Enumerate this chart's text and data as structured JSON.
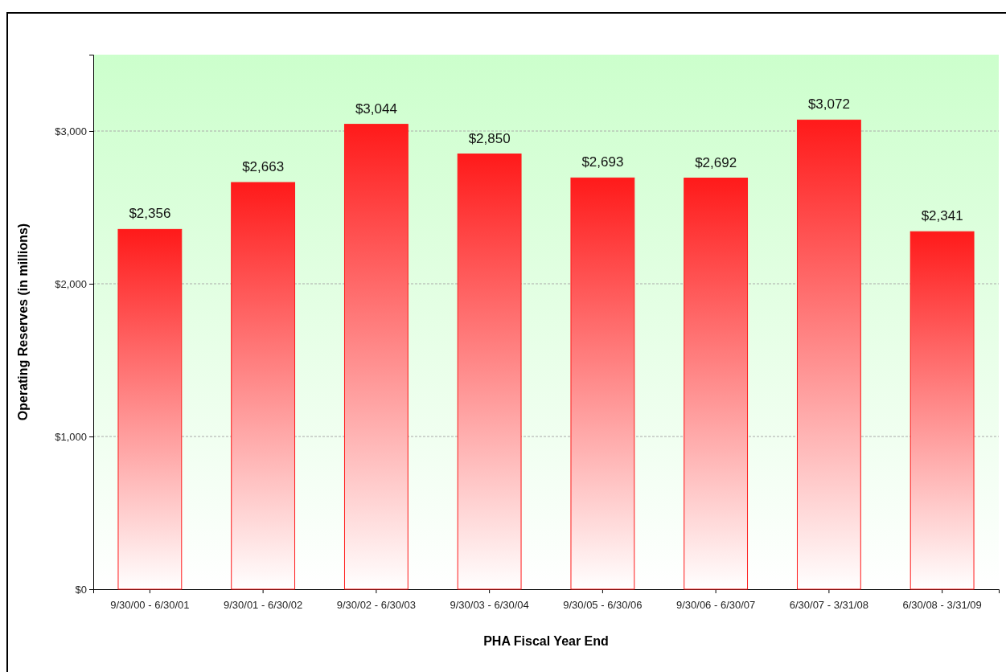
{
  "chart_data": {
    "type": "bar",
    "xlabel": "PHA Fiscal Year End",
    "ylabel": "Operating Reserves (in millions)",
    "categories": [
      "9/30/00 - 6/30/01",
      "9/30/01 - 6/30/02",
      "9/30/02 - 6/30/03",
      "9/30/03 - 6/30/04",
      "9/30/05 - 6/30/06",
      "9/30/06 - 6/30/07",
      "6/30/07 - 3/31/08",
      "6/30/08 - 3/31/09"
    ],
    "values": [
      2356,
      2663,
      3044,
      2850,
      2693,
      2692,
      3072,
      2341
    ],
    "value_labels": [
      "$2,356",
      "$2,663",
      "$3,044",
      "$2,850",
      "$2,693",
      "$2,692",
      "$3,072",
      "$2,341"
    ],
    "color": "#ff1a1a",
    "ylim": [
      0,
      3500
    ],
    "yticks": [
      {
        "value": 0,
        "label": "$0"
      },
      {
        "value": 1000,
        "label": "$1,000"
      },
      {
        "value": 2000,
        "label": "$2,000"
      },
      {
        "value": 3000,
        "label": "$3,000"
      }
    ],
    "grid": "y"
  }
}
